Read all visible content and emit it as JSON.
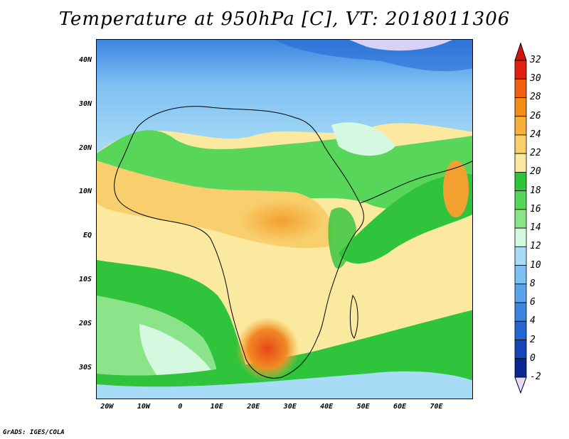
{
  "title": "Temperature at 950hPa [C], VT: 2018011306",
  "credit": "GrADS: IGES/COLA",
  "map": {
    "lon_range": [
      -23,
      80
    ],
    "lat_range": [
      -37,
      45
    ],
    "y_ticks": [
      {
        "label": "40N",
        "lat": 40
      },
      {
        "label": "30N",
        "lat": 30
      },
      {
        "label": "20N",
        "lat": 20
      },
      {
        "label": "10N",
        "lat": 10
      },
      {
        "label": "EQ",
        "lat": 0
      },
      {
        "label": "10S",
        "lat": -10
      },
      {
        "label": "20S",
        "lat": -20
      },
      {
        "label": "30S",
        "lat": -30
      }
    ],
    "x_ticks": [
      {
        "label": "20W",
        "lon": -20
      },
      {
        "label": "10W",
        "lon": -10
      },
      {
        "label": "0",
        "lon": 0
      },
      {
        "label": "10E",
        "lon": 10
      },
      {
        "label": "20E",
        "lon": 20
      },
      {
        "label": "30E",
        "lon": 30
      },
      {
        "label": "40E",
        "lon": 40
      },
      {
        "label": "50E",
        "lon": 50
      },
      {
        "label": "60E",
        "lon": 60
      },
      {
        "label": "70E",
        "lon": 70
      }
    ]
  },
  "colorbar": {
    "levels": [
      "32",
      "30",
      "28",
      "26",
      "24",
      "22",
      "20",
      "18",
      "16",
      "14",
      "12",
      "10",
      "8",
      "6",
      "4",
      "2",
      "0",
      "-2"
    ],
    "colors": [
      "#e32010",
      "#f06010",
      "#f48c18",
      "#f6ae3c",
      "#f8cf6c",
      "#fbe9a0",
      "#2fc43c",
      "#58d65a",
      "#8be48a",
      "#d4f8e0",
      "#a8dcf6",
      "#7fc0f2",
      "#5aa4ec",
      "#3c86e2",
      "#2266d2",
      "#1446b8",
      "#0a2890"
    ],
    "top_triangle": "#d7140c",
    "bottom_triangle": "#e4dcfa"
  }
}
